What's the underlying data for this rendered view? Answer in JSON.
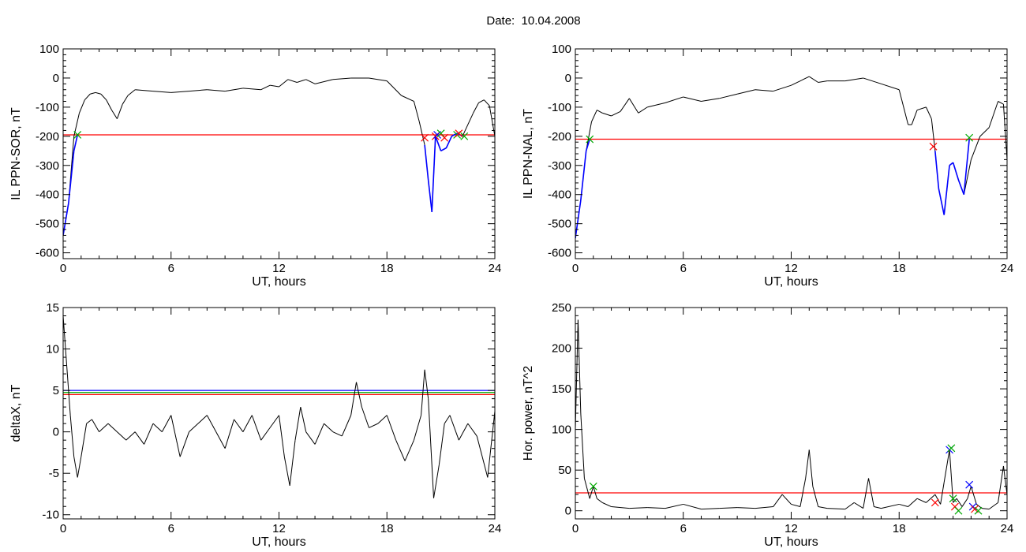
{
  "title": "Date:  10.04.2008",
  "chart_data": [
    {
      "type": "line",
      "xlabel": "UT, hours",
      "ylabel": "IL PPN-SOR, nT",
      "xlim": [
        0,
        24
      ],
      "ylim": [
        -620,
        100
      ],
      "xticks": [
        0,
        6,
        12,
        18,
        24
      ],
      "yticks": [
        100,
        0,
        -100,
        -200,
        -300,
        -400,
        -500,
        -600
      ],
      "series": [
        {
          "color": "#000000",
          "x": [
            0,
            0.3,
            0.6,
            0.9,
            1.2,
            1.5,
            1.8,
            2.1,
            2.4,
            2.7,
            3.0,
            3.3,
            3.6,
            4,
            5,
            6,
            7,
            8,
            9,
            10,
            11,
            11.5,
            12,
            12.5,
            13,
            13.5,
            14,
            15,
            16,
            17,
            18,
            18.8,
            19.5,
            19.8,
            20.1,
            20.3,
            20.5,
            20.7,
            21.0,
            21.3,
            21.6,
            21.9,
            22.2,
            22.5,
            22.8,
            23.1,
            23.4,
            23.7,
            24
          ],
          "y": [
            -540,
            -430,
            -200,
            -120,
            -75,
            -55,
            -50,
            -55,
            -75,
            -110,
            -140,
            -90,
            -60,
            -40,
            -45,
            -50,
            -45,
            -40,
            -45,
            -35,
            -40,
            -25,
            -30,
            -5,
            -15,
            -5,
            -20,
            -5,
            0,
            0,
            -10,
            -60,
            -80,
            -150,
            -230,
            -350,
            -460,
            -200,
            -250,
            -240,
            -200,
            -190,
            -200,
            -160,
            -120,
            -85,
            -75,
            -95,
            -200
          ]
        },
        {
          "color": "#0000ff",
          "x": [
            0,
            0.3,
            0.6,
            0.8,
            20.1,
            20.3,
            20.5,
            20.7,
            21.0,
            21.3,
            21.6,
            21.9,
            22.2
          ],
          "y": [
            -540,
            -430,
            -250,
            -195,
            -230,
            -350,
            -460,
            -200,
            -250,
            -240,
            -200,
            -190,
            -200
          ]
        }
      ],
      "threshold_lines": [
        {
          "color": "#ff0000",
          "y": -195
        }
      ],
      "markers": [
        {
          "color": "#00aa00",
          "x": 0.8,
          "y": -195
        },
        {
          "color": "#ff0000",
          "x": 20.1,
          "y": -205
        },
        {
          "color": "#ff0000",
          "x": 20.7,
          "y": -200
        },
        {
          "color": "#0000ff",
          "x": 20.8,
          "y": -195
        },
        {
          "color": "#00aa00",
          "x": 21.0,
          "y": -190
        },
        {
          "color": "#ff0000",
          "x": 21.2,
          "y": -205
        },
        {
          "color": "#00aa00",
          "x": 21.9,
          "y": -195
        },
        {
          "color": "#ff0000",
          "x": 22.0,
          "y": -190
        },
        {
          "color": "#00aa00",
          "x": 22.3,
          "y": -200
        }
      ]
    },
    {
      "type": "line",
      "xlabel": "UT, hours",
      "ylabel": "IL PPN-NAL, nT",
      "xlim": [
        0,
        24
      ],
      "ylim": [
        -620,
        100
      ],
      "xticks": [
        0,
        6,
        12,
        18,
        24
      ],
      "yticks": [
        100,
        0,
        -100,
        -200,
        -300,
        -400,
        -500,
        -600
      ],
      "series": [
        {
          "color": "#000000",
          "x": [
            0,
            0.3,
            0.6,
            0.9,
            1.2,
            1.5,
            2,
            2.5,
            3,
            3.5,
            4,
            5,
            6,
            7,
            8,
            9,
            10,
            11,
            12,
            12.5,
            13,
            13.5,
            14,
            15,
            16,
            17,
            18,
            18.5,
            18.7,
            19.0,
            19.5,
            19.8,
            20.0,
            20.2,
            20.5,
            20.8,
            21.0,
            21.3,
            21.6,
            22.0,
            22.5,
            23.0,
            23.5,
            23.8,
            24
          ],
          "y": [
            -550,
            -420,
            -250,
            -150,
            -110,
            -120,
            -130,
            -115,
            -70,
            -120,
            -100,
            -85,
            -65,
            -80,
            -70,
            -55,
            -40,
            -45,
            -25,
            -10,
            5,
            -15,
            -10,
            -10,
            0,
            -20,
            -40,
            -160,
            -160,
            -110,
            -100,
            -140,
            -250,
            -380,
            -470,
            -300,
            -290,
            -350,
            -400,
            -280,
            -200,
            -170,
            -80,
            -90,
            -280
          ]
        },
        {
          "color": "#0000ff",
          "x": [
            0,
            0.3,
            0.6,
            0.8,
            20.0,
            20.2,
            20.5,
            20.8,
            21.0,
            21.3,
            21.6,
            21.9
          ],
          "y": [
            -550,
            -420,
            -250,
            -210,
            -250,
            -380,
            -470,
            -300,
            -290,
            -350,
            -400,
            -210
          ]
        }
      ],
      "threshold_lines": [
        {
          "color": "#ff0000",
          "y": -210
        }
      ],
      "markers": [
        {
          "color": "#00aa00",
          "x": 0.8,
          "y": -210
        },
        {
          "color": "#ff0000",
          "x": 19.9,
          "y": -235
        },
        {
          "color": "#00aa00",
          "x": 21.9,
          "y": -205
        }
      ]
    },
    {
      "type": "line",
      "xlabel": "UT, hours",
      "ylabel": "deltaX, nT",
      "xlim": [
        0,
        24
      ],
      "ylim": [
        -10.5,
        15
      ],
      "xticks": [
        0,
        6,
        12,
        18,
        24
      ],
      "yticks": [
        15,
        10,
        5,
        0,
        -5,
        -10
      ],
      "series": [
        {
          "color": "#000000",
          "x": [
            0,
            0.2,
            0.4,
            0.6,
            0.8,
            1.0,
            1.3,
            1.6,
            2,
            2.5,
            3,
            3.5,
            4,
            4.5,
            5,
            5.5,
            6,
            6.3,
            6.5,
            7,
            7.5,
            8,
            8.5,
            9,
            9.5,
            10,
            10.5,
            11,
            11.5,
            12,
            12.3,
            12.6,
            12.9,
            13.2,
            13.5,
            14,
            14.5,
            15,
            15.5,
            16,
            16.3,
            16.6,
            17,
            17.5,
            18,
            18.5,
            19,
            19.5,
            19.9,
            20.1,
            20.3,
            20.6,
            20.9,
            21.2,
            21.5,
            22,
            22.5,
            23,
            23.3,
            23.6,
            24
          ],
          "y": [
            14,
            8,
            2,
            -3,
            -5.5,
            -3,
            1,
            1.5,
            0,
            1,
            0,
            -1,
            0,
            -1.5,
            1,
            0,
            2,
            -1,
            -3,
            0,
            1,
            2,
            0,
            -2,
            1.5,
            0,
            2,
            -1,
            0.5,
            2,
            -3,
            -6.5,
            -1,
            3,
            0,
            -1.5,
            1,
            0,
            -0.5,
            2,
            6,
            3,
            0.5,
            1,
            2,
            -1,
            -3.5,
            -1,
            2,
            7.5,
            4,
            -8,
            -4,
            1,
            2,
            -1,
            1,
            -0.5,
            -3,
            -5.5,
            2.5
          ]
        }
      ],
      "threshold_lines": [
        {
          "color": "#0000ff",
          "y": 5.0
        },
        {
          "color": "#00aa00",
          "y": 4.75
        },
        {
          "color": "#ff0000",
          "y": 4.5
        }
      ],
      "markers": []
    },
    {
      "type": "line",
      "xlabel": "UT, hours",
      "ylabel": "Hor. power, nT^2",
      "xlim": [
        0,
        24
      ],
      "ylim": [
        -10,
        250
      ],
      "xticks": [
        0,
        6,
        12,
        18,
        24
      ],
      "yticks": [
        250,
        200,
        150,
        100,
        50,
        0
      ],
      "series": [
        {
          "color": "#000000",
          "x": [
            0,
            0.15,
            0.3,
            0.5,
            0.8,
            1.0,
            1.2,
            1.5,
            2,
            3,
            4,
            5,
            6,
            7,
            8,
            9,
            10,
            11,
            11.5,
            12,
            12.5,
            12.8,
            13.0,
            13.2,
            13.5,
            14,
            15,
            15.5,
            16,
            16.3,
            16.6,
            17,
            18,
            18.5,
            19,
            19.5,
            20,
            20.3,
            20.5,
            20.8,
            21.0,
            21.2,
            21.5,
            21.8,
            22.0,
            22.3,
            22.6,
            23,
            23.5,
            23.8,
            24
          ],
          "y": [
            100,
            235,
            120,
            40,
            15,
            30,
            15,
            10,
            5,
            3,
            4,
            3,
            8,
            2,
            3,
            4,
            3,
            5,
            20,
            8,
            5,
            40,
            75,
            30,
            5,
            3,
            2,
            10,
            3,
            40,
            5,
            3,
            8,
            5,
            15,
            10,
            20,
            8,
            35,
            75,
            10,
            15,
            5,
            15,
            30,
            8,
            3,
            2,
            10,
            55,
            20
          ]
        }
      ],
      "threshold_lines": [
        {
          "color": "#ff0000",
          "y": 22
        }
      ],
      "markers": [
        {
          "color": "#00aa00",
          "x": 1.0,
          "y": 30
        },
        {
          "color": "#ff0000",
          "x": 20.0,
          "y": 10
        },
        {
          "color": "#0000ff",
          "x": 20.8,
          "y": 75
        },
        {
          "color": "#00aa00",
          "x": 20.9,
          "y": 77
        },
        {
          "color": "#00aa00",
          "x": 21.0,
          "y": 15
        },
        {
          "color": "#ff0000",
          "x": 21.1,
          "y": 5
        },
        {
          "color": "#00aa00",
          "x": 21.3,
          "y": 0
        },
        {
          "color": "#0000ff",
          "x": 21.9,
          "y": 32
        },
        {
          "color": "#0000ff",
          "x": 22.1,
          "y": 5
        },
        {
          "color": "#ff0000",
          "x": 22.2,
          "y": 2
        },
        {
          "color": "#00aa00",
          "x": 22.4,
          "y": 0
        }
      ]
    }
  ]
}
